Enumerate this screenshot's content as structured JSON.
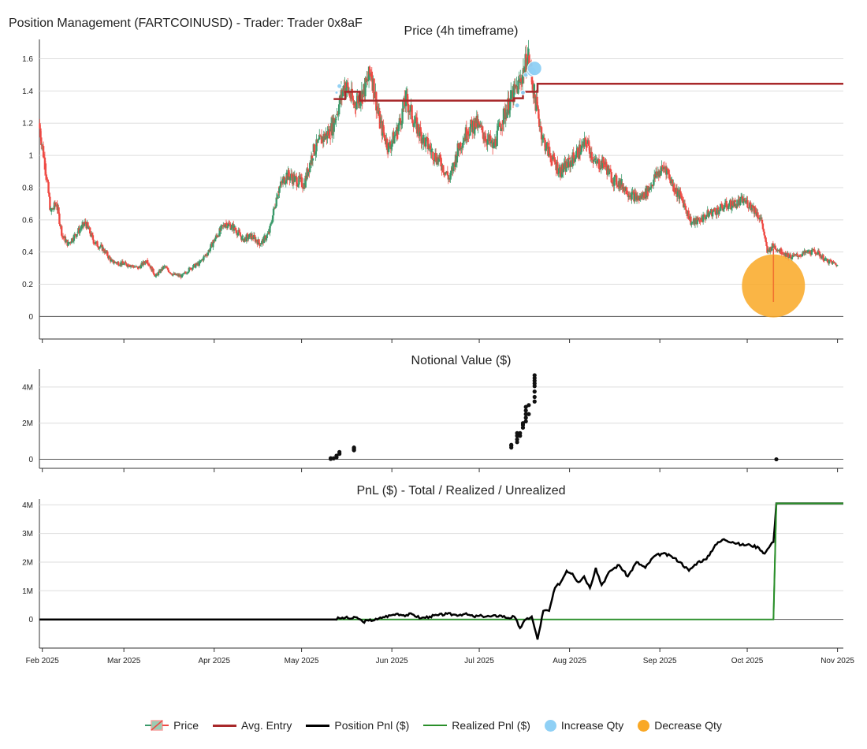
{
  "page_title": "Position Management (FARTCOINUSD) - Trader: Trader 0x8aF",
  "colors": {
    "up": "#3a9a6a",
    "down": "#ef4a44",
    "avg_entry": "#a8282a",
    "position_pnl": "#000000",
    "realized_pnl": "#2a8f2a",
    "increase_qty": "#8fd0f5",
    "decrease_qty": "#f9a825",
    "grid": "#dddddd",
    "axis": "#333333"
  },
  "legend": [
    {
      "label": "Price",
      "icon": "candle-icon"
    },
    {
      "label": "Avg. Entry",
      "icon": "avg-entry-line-icon"
    },
    {
      "label": "Position Pnl ($)",
      "icon": "position-pnl-line-icon"
    },
    {
      "label": "Realized Pnl ($)",
      "icon": "realized-pnl-line-icon"
    },
    {
      "label": "Increase Qty",
      "icon": "increase-qty-dot-icon"
    },
    {
      "label": "Decrease Qty",
      "icon": "decrease-qty-dot-icon"
    }
  ],
  "chart_data": [
    {
      "id": "price",
      "type": "candlestick",
      "title": "Price (4h timeframe)",
      "x_ticks": [
        "Feb 2025",
        "Mar 2025",
        "Apr 2025",
        "May 2025",
        "Jun 2025",
        "Jul 2025",
        "Aug 2025",
        "Sep 2025",
        "Oct 2025",
        "Nov 2025"
      ],
      "y_ticks": [
        "0",
        "0.2",
        "0.4",
        "0.6",
        "0.8",
        "1",
        "1.2",
        "1.4",
        "1.6"
      ],
      "ylim": [
        -0.14,
        1.72
      ],
      "xlim": [
        "2025-01-31",
        "2025-11-03"
      ],
      "close_series": [
        [
          "2025-01-31",
          1.2
        ],
        [
          "2025-02-02",
          0.95
        ],
        [
          "2025-02-04",
          0.65
        ],
        [
          "2025-02-06",
          0.7
        ],
        [
          "2025-02-08",
          0.5
        ],
        [
          "2025-02-10",
          0.45
        ],
        [
          "2025-02-13",
          0.52
        ],
        [
          "2025-02-16",
          0.58
        ],
        [
          "2025-02-19",
          0.46
        ],
        [
          "2025-02-22",
          0.42
        ],
        [
          "2025-02-25",
          0.34
        ],
        [
          "2025-02-28",
          0.33
        ],
        [
          "2025-03-03",
          0.32
        ],
        [
          "2025-03-06",
          0.3
        ],
        [
          "2025-03-09",
          0.35
        ],
        [
          "2025-03-12",
          0.25
        ],
        [
          "2025-03-15",
          0.31
        ],
        [
          "2025-03-18",
          0.26
        ],
        [
          "2025-03-21",
          0.25
        ],
        [
          "2025-03-24",
          0.3
        ],
        [
          "2025-03-27",
          0.33
        ],
        [
          "2025-03-30",
          0.4
        ],
        [
          "2025-04-02",
          0.5
        ],
        [
          "2025-04-05",
          0.58
        ],
        [
          "2025-04-08",
          0.55
        ],
        [
          "2025-04-11",
          0.48
        ],
        [
          "2025-04-14",
          0.5
        ],
        [
          "2025-04-17",
          0.45
        ],
        [
          "2025-04-20",
          0.52
        ],
        [
          "2025-04-23",
          0.78
        ],
        [
          "2025-04-26",
          0.88
        ],
        [
          "2025-04-29",
          0.85
        ],
        [
          "2025-05-02",
          0.82
        ],
        [
          "2025-05-05",
          1.02
        ],
        [
          "2025-05-08",
          1.1
        ],
        [
          "2025-05-11",
          1.15
        ],
        [
          "2025-05-13",
          1.25
        ],
        [
          "2025-05-16",
          1.45
        ],
        [
          "2025-05-19",
          1.32
        ],
        [
          "2025-05-22",
          1.38
        ],
        [
          "2025-05-25",
          1.52
        ],
        [
          "2025-05-28",
          1.2
        ],
        [
          "2025-05-31",
          1.05
        ],
        [
          "2025-06-03",
          1.15
        ],
        [
          "2025-06-06",
          1.35
        ],
        [
          "2025-06-09",
          1.2
        ],
        [
          "2025-06-12",
          1.1
        ],
        [
          "2025-06-15",
          1.02
        ],
        [
          "2025-06-18",
          0.95
        ],
        [
          "2025-06-21",
          0.85
        ],
        [
          "2025-06-24",
          1.05
        ],
        [
          "2025-06-27",
          1.15
        ],
        [
          "2025-06-30",
          1.2
        ],
        [
          "2025-07-03",
          1.12
        ],
        [
          "2025-07-06",
          1.05
        ],
        [
          "2025-07-09",
          1.22
        ],
        [
          "2025-07-12",
          1.35
        ],
        [
          "2025-07-15",
          1.45
        ],
        [
          "2025-07-18",
          1.62
        ],
        [
          "2025-07-20",
          1.38
        ],
        [
          "2025-07-23",
          1.1
        ],
        [
          "2025-07-26",
          0.98
        ],
        [
          "2025-07-29",
          0.9
        ],
        [
          "2025-08-01",
          0.95
        ],
        [
          "2025-08-04",
          1.02
        ],
        [
          "2025-08-07",
          1.08
        ],
        [
          "2025-08-10",
          0.95
        ],
        [
          "2025-08-13",
          0.95
        ],
        [
          "2025-08-16",
          0.85
        ],
        [
          "2025-08-19",
          0.82
        ],
        [
          "2025-08-22",
          0.76
        ],
        [
          "2025-08-25",
          0.73
        ],
        [
          "2025-08-28",
          0.78
        ],
        [
          "2025-08-31",
          0.88
        ],
        [
          "2025-09-03",
          0.93
        ],
        [
          "2025-09-06",
          0.8
        ],
        [
          "2025-09-09",
          0.72
        ],
        [
          "2025-09-12",
          0.58
        ],
        [
          "2025-09-15",
          0.6
        ],
        [
          "2025-09-18",
          0.64
        ],
        [
          "2025-09-21",
          0.66
        ],
        [
          "2025-09-24",
          0.69
        ],
        [
          "2025-09-27",
          0.7
        ],
        [
          "2025-09-30",
          0.72
        ],
        [
          "2025-10-03",
          0.68
        ],
        [
          "2025-10-06",
          0.6
        ],
        [
          "2025-10-08",
          0.4
        ],
        [
          "2025-10-10",
          0.44
        ],
        [
          "2025-10-13",
          0.4
        ],
        [
          "2025-10-16",
          0.37
        ],
        [
          "2025-10-19",
          0.38
        ],
        [
          "2025-10-22",
          0.4
        ],
        [
          "2025-10-25",
          0.4
        ],
        [
          "2025-10-28",
          0.35
        ],
        [
          "2025-10-31",
          0.33
        ],
        [
          "2025-11-01",
          0.32
        ]
      ],
      "avg_entry": [
        [
          "2025-05-12",
          1.35
        ],
        [
          "2025-05-16",
          1.35
        ],
        [
          "2025-05-16",
          1.395
        ],
        [
          "2025-05-21",
          1.395
        ],
        [
          "2025-05-21",
          1.34
        ],
        [
          "2025-07-13",
          1.34
        ],
        [
          "2025-07-13",
          1.355
        ],
        [
          "2025-07-16",
          1.355
        ],
        [
          "2025-07-16",
          1.395
        ],
        [
          "2025-07-21",
          1.395
        ],
        [
          "2025-07-21",
          1.445
        ],
        [
          "2025-11-03",
          1.445
        ]
      ],
      "increase_qty": [
        {
          "date": "2025-05-13",
          "price": 1.39,
          "size": 2
        },
        {
          "date": "2025-05-14",
          "price": 1.43,
          "size": 3
        },
        {
          "date": "2025-07-14",
          "price": 1.31,
          "size": 3
        },
        {
          "date": "2025-07-16",
          "price": 1.39,
          "size": 3
        },
        {
          "date": "2025-07-17",
          "price": 1.5,
          "size": 3
        },
        {
          "date": "2025-07-19",
          "price": 1.52,
          "size": 6
        },
        {
          "date": "2025-07-20",
          "price": 1.54,
          "size": 9
        }
      ],
      "decrease_qty": [
        {
          "date": "2025-10-10",
          "price": 0.19,
          "size": 40
        }
      ]
    },
    {
      "id": "notional",
      "type": "scatter",
      "title": "Notional Value ($)",
      "y_ticks": [
        "0",
        "2M",
        "4M"
      ],
      "ylim": [
        -500000,
        5000000
      ],
      "points": [
        [
          "2025-05-11",
          20000
        ],
        [
          "2025-05-11",
          60000
        ],
        [
          "2025-05-12",
          50000
        ],
        [
          "2025-05-13",
          100000
        ],
        [
          "2025-05-13",
          200000
        ],
        [
          "2025-05-14",
          300000
        ],
        [
          "2025-05-14",
          400000
        ],
        [
          "2025-05-19",
          500000
        ],
        [
          "2025-05-19",
          550000
        ],
        [
          "2025-05-19",
          600000
        ],
        [
          "2025-05-19",
          650000
        ],
        [
          "2025-07-12",
          650000
        ],
        [
          "2025-07-12",
          750000
        ],
        [
          "2025-07-12",
          800000
        ],
        [
          "2025-07-14",
          950000
        ],
        [
          "2025-07-14",
          1100000
        ],
        [
          "2025-07-14",
          1300000
        ],
        [
          "2025-07-14",
          1450000
        ],
        [
          "2025-07-15",
          1300000
        ],
        [
          "2025-07-15",
          1450000
        ],
        [
          "2025-07-16",
          1750000
        ],
        [
          "2025-07-16",
          1900000
        ],
        [
          "2025-07-16",
          2000000
        ],
        [
          "2025-07-17",
          2100000
        ],
        [
          "2025-07-17",
          2300000
        ],
        [
          "2025-07-17",
          2500000
        ],
        [
          "2025-07-17",
          2700000
        ],
        [
          "2025-07-17",
          2900000
        ],
        [
          "2025-07-18",
          2500000
        ],
        [
          "2025-07-18",
          3000000
        ],
        [
          "2025-07-20",
          3200000
        ],
        [
          "2025-07-20",
          3450000
        ],
        [
          "2025-07-20",
          3750000
        ],
        [
          "2025-07-20",
          4050000
        ],
        [
          "2025-07-20",
          4200000
        ],
        [
          "2025-07-20",
          4350000
        ],
        [
          "2025-07-20",
          4500000
        ],
        [
          "2025-07-20",
          4650000
        ],
        [
          "2025-10-11",
          0
        ]
      ]
    },
    {
      "id": "pnl",
      "type": "line",
      "title": "PnL ($) - Total / Realized / Unrealized",
      "x_ticks": [
        "Feb 2025",
        "Mar 2025",
        "Apr 2025",
        "May 2025",
        "Jun 2025",
        "Jul 2025",
        "Aug 2025",
        "Sep 2025",
        "Oct 2025",
        "Nov 2025"
      ],
      "y_ticks": [
        "0",
        "1M",
        "2M",
        "3M",
        "4M"
      ],
      "ylim": [
        -1000000,
        4200000
      ],
      "series": [
        {
          "name": "Position Pnl ($)",
          "points": [
            [
              "2025-01-31",
              0
            ],
            [
              "2025-05-12",
              0
            ],
            [
              "2025-05-14",
              40000
            ],
            [
              "2025-05-16",
              60000
            ],
            [
              "2025-05-18",
              30000
            ],
            [
              "2025-05-20",
              70000
            ],
            [
              "2025-05-22",
              -80000
            ],
            [
              "2025-05-24",
              -40000
            ],
            [
              "2025-05-27",
              0
            ],
            [
              "2025-05-29",
              80000
            ],
            [
              "2025-06-01",
              150000
            ],
            [
              "2025-06-03",
              200000
            ],
            [
              "2025-06-05",
              150000
            ],
            [
              "2025-06-08",
              180000
            ],
            [
              "2025-06-11",
              40000
            ],
            [
              "2025-06-14",
              100000
            ],
            [
              "2025-06-17",
              150000
            ],
            [
              "2025-06-20",
              190000
            ],
            [
              "2025-06-23",
              160000
            ],
            [
              "2025-06-26",
              190000
            ],
            [
              "2025-06-29",
              100000
            ],
            [
              "2025-07-02",
              120000
            ],
            [
              "2025-07-05",
              100000
            ],
            [
              "2025-07-08",
              140000
            ],
            [
              "2025-07-11",
              50000
            ],
            [
              "2025-07-13",
              100000
            ],
            [
              "2025-07-15",
              -300000
            ],
            [
              "2025-07-17",
              0
            ],
            [
              "2025-07-19",
              100000
            ],
            [
              "2025-07-21",
              -700000
            ],
            [
              "2025-07-23",
              300000
            ],
            [
              "2025-07-25",
              300000
            ],
            [
              "2025-07-27",
              1100000
            ],
            [
              "2025-07-29",
              1300000
            ],
            [
              "2025-07-31",
              1700000
            ],
            [
              "2025-08-02",
              1600000
            ],
            [
              "2025-08-04",
              1300000
            ],
            [
              "2025-08-06",
              1500000
            ],
            [
              "2025-08-08",
              1100000
            ],
            [
              "2025-08-10",
              1800000
            ],
            [
              "2025-08-12",
              1200000
            ],
            [
              "2025-08-15",
              1700000
            ],
            [
              "2025-08-18",
              1900000
            ],
            [
              "2025-08-21",
              1500000
            ],
            [
              "2025-08-24",
              2000000
            ],
            [
              "2025-08-27",
              1800000
            ],
            [
              "2025-08-30",
              2200000
            ],
            [
              "2025-09-02",
              2300000
            ],
            [
              "2025-09-05",
              2200000
            ],
            [
              "2025-09-08",
              2000000
            ],
            [
              "2025-09-11",
              1700000
            ],
            [
              "2025-09-14",
              2000000
            ],
            [
              "2025-09-17",
              2100000
            ],
            [
              "2025-09-20",
              2600000
            ],
            [
              "2025-09-23",
              2800000
            ],
            [
              "2025-09-26",
              2700000
            ],
            [
              "2025-09-29",
              2600000
            ],
            [
              "2025-10-02",
              2600000
            ],
            [
              "2025-10-05",
              2500000
            ],
            [
              "2025-10-07",
              2300000
            ],
            [
              "2025-10-09",
              2600000
            ],
            [
              "2025-10-10",
              2700000
            ],
            [
              "2025-10-11",
              4050000
            ],
            [
              "2025-11-03",
              4050000
            ]
          ]
        },
        {
          "name": "Realized Pnl ($)",
          "points": [
            [
              "2025-01-31",
              0
            ],
            [
              "2025-10-10",
              0
            ],
            [
              "2025-10-11",
              4050000
            ],
            [
              "2025-11-03",
              4050000
            ]
          ]
        }
      ]
    }
  ]
}
